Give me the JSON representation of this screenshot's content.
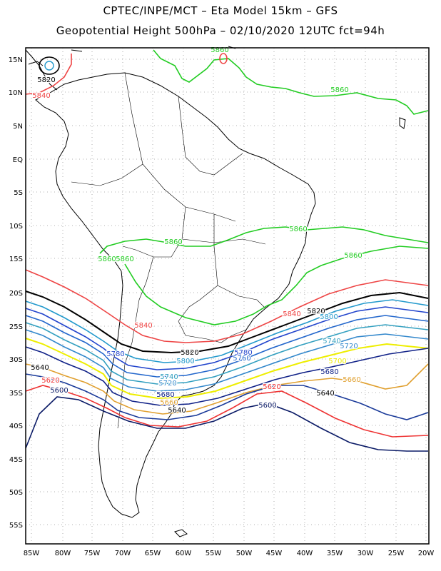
{
  "header": {
    "line1": "CPTEC/INPE/MCT –  Eta Model 15km – GFS",
    "line2": "Geopotential Height 500hPa – 02/10/2020 12UTC fct=94h"
  },
  "axes": {
    "lat_labels": [
      "15N",
      "10N",
      "5N",
      "EQ",
      "5S",
      "10S",
      "15S",
      "20S",
      "25S",
      "30S",
      "35S",
      "40S",
      "45S",
      "50S",
      "55S"
    ],
    "lon_labels": [
      "85W",
      "80W",
      "75W",
      "70W",
      "65W",
      "60W",
      "55W",
      "50W",
      "45W",
      "40W",
      "35W",
      "30W",
      "25W",
      "20W"
    ]
  },
  "colors": {
    "c5860": "#22cc22",
    "c5840": "#ee4444",
    "c5820": "#000000",
    "c5800": "#2299cc",
    "c5780": "#2244cc",
    "c5760": "#2266cc",
    "c5740": "#33a0c0",
    "c5720": "#3388cc",
    "c5700": "#eeee00",
    "c5680": "#112288",
    "c5660": "#e0a030",
    "c5620": "#ee3333",
    "c5600": "#0a1a66"
  },
  "contour_labels": [
    {
      "text": "5860",
      "color": "c5860"
    },
    {
      "text": "5860",
      "color": "c5860"
    },
    {
      "text": "5860",
      "color": "c5860"
    },
    {
      "text": "5860",
      "color": "c5860"
    },
    {
      "text": "5860",
      "color": "c5860"
    },
    {
      "text": "5860",
      "color": "c5860"
    },
    {
      "text": "5860",
      "color": "c5860"
    },
    {
      "text": "5820",
      "color": "c5820"
    },
    {
      "text": "5840",
      "color": "c5840"
    },
    {
      "text": "5840",
      "color": "c5840"
    },
    {
      "text": "5840",
      "color": "c5840"
    },
    {
      "text": "5820",
      "color": "c5820"
    },
    {
      "text": "5800",
      "color": "c5800"
    },
    {
      "text": "5820",
      "color": "c5820"
    },
    {
      "text": "5780",
      "color": "c5780"
    },
    {
      "text": "5780",
      "color": "c5780"
    },
    {
      "text": "5760",
      "color": "c5760"
    },
    {
      "text": "5740",
      "color": "c5740"
    },
    {
      "text": "5720",
      "color": "c5720"
    },
    {
      "text": "5800",
      "color": "c5800"
    },
    {
      "text": "5740",
      "color": "c5740"
    },
    {
      "text": "5720",
      "color": "c5720"
    },
    {
      "text": "5700",
      "color": "c5700"
    },
    {
      "text": "5680",
      "color": "c5680"
    },
    {
      "text": "5660",
      "color": "c5660"
    },
    {
      "text": "5680",
      "color": "c5680"
    },
    {
      "text": "5660",
      "color": "c5660"
    },
    {
      "text": "5640",
      "color": "c5640"
    },
    {
      "text": "5620",
      "color": "c5620"
    },
    {
      "text": "5600",
      "color": "c5600"
    },
    {
      "text": "5640",
      "color": "c5640"
    },
    {
      "text": "5620",
      "color": "c5620"
    },
    {
      "text": "5640",
      "color": "c5640"
    },
    {
      "text": "5600",
      "color": "c5600"
    }
  ]
}
